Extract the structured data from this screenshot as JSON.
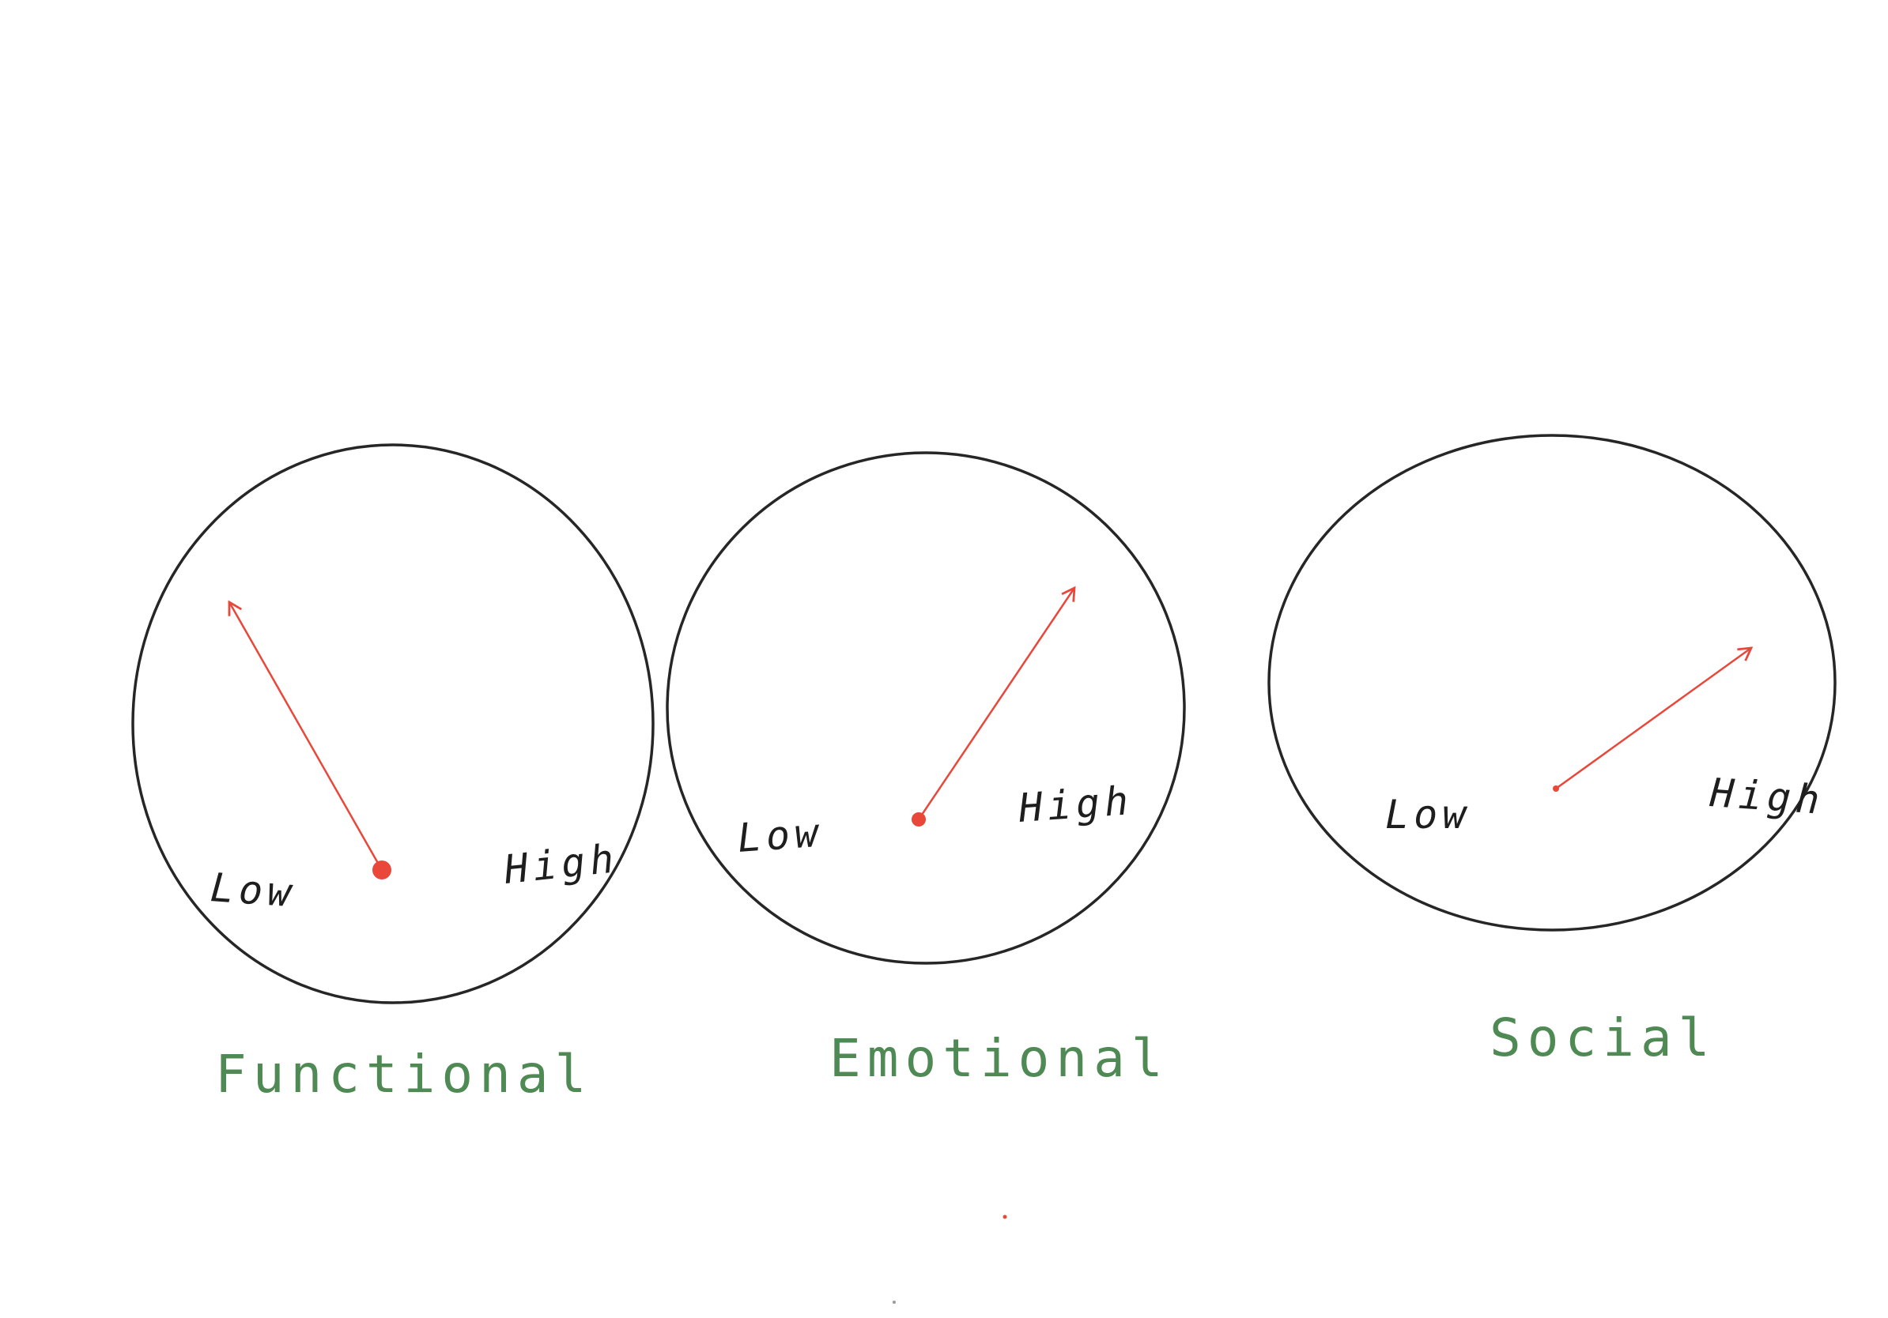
{
  "colors": {
    "outline": "#262626",
    "arrow": "#e8473a",
    "caption": "#4f8a55"
  },
  "dials": [
    {
      "caption": "Functional",
      "low_label": "Low",
      "high_label": "High"
    },
    {
      "caption": "Emotional",
      "low_label": "Low",
      "high_label": "High"
    },
    {
      "caption": "Social",
      "low_label": "Low",
      "high_label": "High"
    }
  ]
}
